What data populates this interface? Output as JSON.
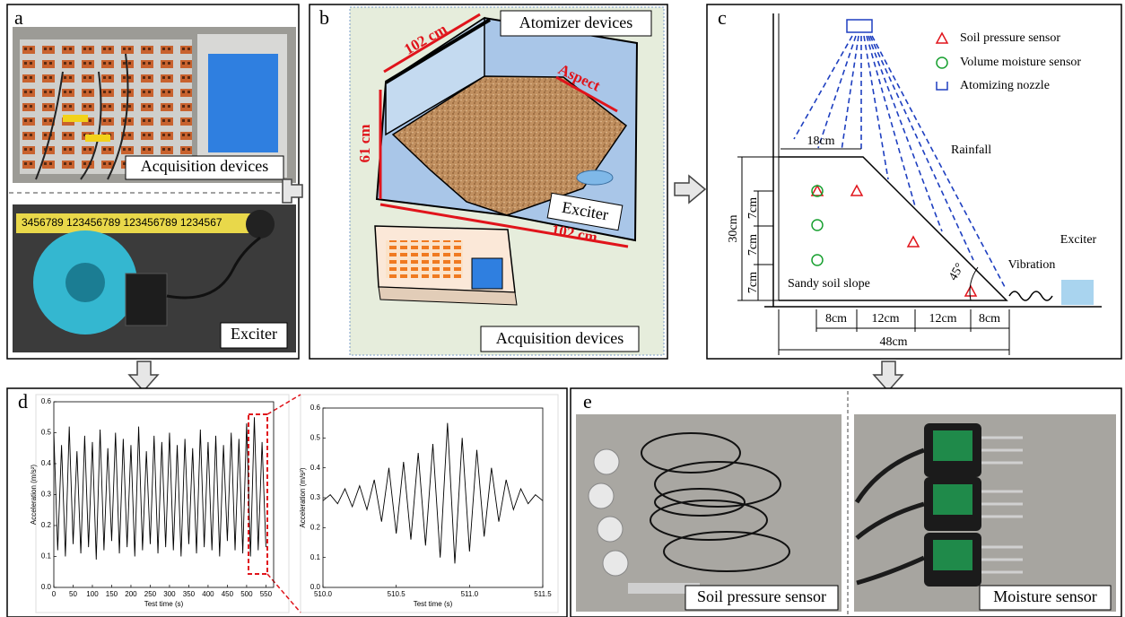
{
  "panels": {
    "a": {
      "letter": "a",
      "photo_top_label": "Acquisition devices",
      "ruler_text": "3456789 123456789 123456789 1234567",
      "photo_bottom_label": "Exciter"
    },
    "b": {
      "letter": "b",
      "width_top": "102 cm",
      "atomizer": "Atomizer devices",
      "aspect": "Aspect",
      "height": "61 cm",
      "exciter": "Exciter",
      "width_bottom": "102 cm",
      "acquisition": "Acquisition devices"
    },
    "c": {
      "letter": "c",
      "legend": [
        "Soil pressure sensor",
        "Volume moisture sensor",
        "Atomizing nozzle"
      ],
      "top_width": "18cm",
      "rainfall": "Rainfall",
      "height": "30cm",
      "layers": [
        "7cm",
        "7cm",
        "7cm"
      ],
      "slope": "Sandy soil slope",
      "angle": "45°",
      "vibration": "Vibration",
      "exciter": "Exciter",
      "spacing": [
        "8cm",
        "12cm",
        "12cm",
        "8cm"
      ],
      "base": "48cm"
    },
    "d": {
      "letter": "d",
      "charts": [
        {
          "type": "line",
          "x_label": "Test time (s)",
          "y_label": "Acceleration (m/s²)",
          "color": "#000000",
          "x": [
            0,
            10,
            20,
            30,
            40,
            50,
            60,
            70,
            80,
            90,
            100,
            110,
            120,
            130,
            140,
            150,
            160,
            170,
            180,
            190,
            200,
            210,
            220,
            230,
            240,
            250,
            260,
            270,
            280,
            290,
            300,
            310,
            320,
            330,
            340,
            350,
            360,
            370,
            380,
            390,
            400,
            410,
            420,
            430,
            440,
            450,
            460,
            470,
            480,
            490,
            500,
            510,
            520,
            530,
            540,
            550
          ],
          "values": [
            0.5,
            0.12,
            0.46,
            0.1,
            0.52,
            0.14,
            0.44,
            0.11,
            0.49,
            0.13,
            0.47,
            0.09,
            0.51,
            0.12,
            0.45,
            0.15,
            0.5,
            0.11,
            0.48,
            0.13,
            0.46,
            0.1,
            0.52,
            0.12,
            0.44,
            0.14,
            0.49,
            0.11,
            0.47,
            0.13,
            0.5,
            0.12,
            0.46,
            0.1,
            0.48,
            0.14,
            0.45,
            0.11,
            0.51,
            0.13,
            0.47,
            0.12,
            0.49,
            0.1,
            0.46,
            0.15,
            0.5,
            0.12,
            0.48,
            0.11,
            0.53,
            0.1,
            0.55,
            0.12,
            0.47,
            0.13
          ],
          "xlim": [
            0,
            570
          ],
          "ylim": [
            0,
            0.6
          ],
          "xticks": [
            0,
            50,
            100,
            150,
            200,
            250,
            300,
            350,
            400,
            450,
            500,
            550
          ],
          "yticks": [
            {
              "value": 0,
              "label": "0.0"
            },
            0.1,
            0.2,
            0.3,
            0.4,
            0.5,
            0.6
          ]
        },
        {
          "type": "line",
          "x_label": "Test time (s)",
          "y_label": "Acceleration (m/s²)",
          "color": "#000000",
          "x": [
            510,
            510.05,
            510.1,
            510.15,
            510.2,
            510.25,
            510.3,
            510.35,
            510.4,
            510.45,
            510.5,
            510.55,
            510.6,
            510.65,
            510.7,
            510.75,
            510.8,
            510.85,
            510.9,
            510.95,
            511,
            511.05,
            511.1,
            511.15,
            511.2,
            511.25,
            511.3,
            511.35,
            511.4,
            511.45,
            511.5
          ],
          "values": [
            0.29,
            0.31,
            0.28,
            0.33,
            0.27,
            0.34,
            0.26,
            0.36,
            0.22,
            0.4,
            0.18,
            0.42,
            0.16,
            0.45,
            0.14,
            0.48,
            0.1,
            0.55,
            0.08,
            0.5,
            0.12,
            0.46,
            0.17,
            0.4,
            0.22,
            0.36,
            0.26,
            0.33,
            0.28,
            0.31,
            0.29
          ],
          "xlim": [
            510,
            511.5
          ],
          "ylim": [
            0,
            0.6
          ],
          "xticks": [
            {
              "value": 510,
              "label": "510.0"
            },
            510.5,
            {
              "value": 511,
              "label": "511.0"
            },
            511.5
          ],
          "yticks": [
            {
              "value": 0,
              "label": "0.0"
            },
            0.1,
            0.2,
            0.3,
            0.4,
            0.5,
            0.6
          ]
        }
      ]
    },
    "e": {
      "letter": "e",
      "left_label": "Soil pressure sensor",
      "right_label": "Moisture sensor"
    }
  }
}
